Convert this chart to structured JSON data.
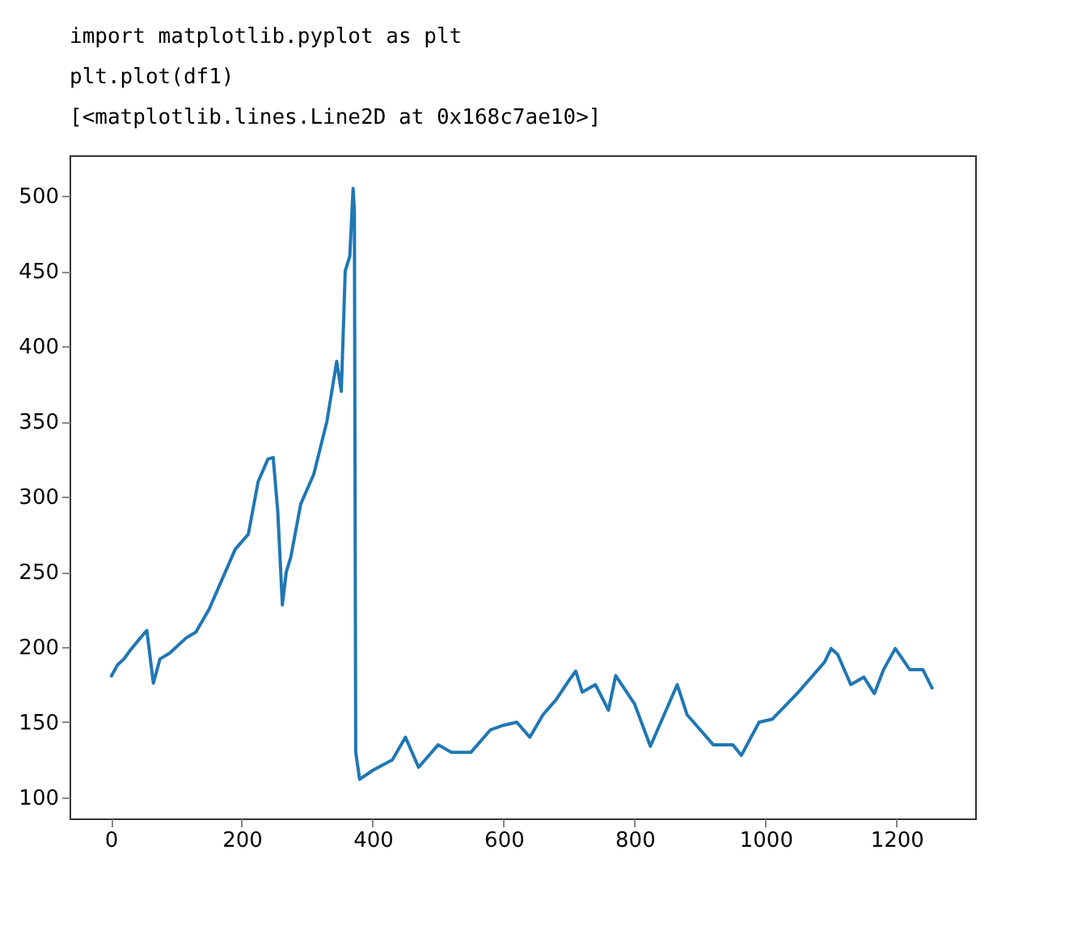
{
  "chart_data": {
    "type": "line",
    "annotations": [
      "import matplotlib.pyplot as plt",
      "plt.plot(df1)",
      "[<matplotlib.lines.Line2D at 0x168c7ae10>]"
    ],
    "x": [
      0,
      10,
      20,
      30,
      45,
      55,
      65,
      75,
      90,
      100,
      115,
      130,
      150,
      170,
      190,
      210,
      225,
      240,
      248,
      255,
      262,
      268,
      275,
      290,
      310,
      330,
      345,
      352,
      358,
      365,
      370,
      372,
      374,
      380,
      400,
      430,
      450,
      470,
      500,
      520,
      550,
      580,
      600,
      620,
      640,
      660,
      680,
      700,
      710,
      720,
      740,
      760,
      771,
      800,
      824,
      835,
      865,
      880,
      900,
      920,
      950,
      963,
      990,
      1010,
      1050,
      1090,
      1100,
      1110,
      1130,
      1150,
      1166,
      1180,
      1198,
      1220,
      1240,
      1255
    ],
    "series": [
      {
        "color": "#1f77b4",
        "values": [
          180,
          188,
          192,
          198,
          206,
          211,
          176,
          192,
          196,
          200,
          206,
          210,
          225,
          245,
          265,
          275,
          310,
          325,
          326,
          290,
          228,
          250,
          260,
          295,
          315,
          350,
          390,
          370,
          450,
          460,
          505,
          490,
          130,
          112,
          118,
          125,
          140,
          120,
          135,
          130,
          130,
          145,
          148,
          150,
          140,
          155,
          165,
          178,
          184,
          170,
          175,
          158,
          181,
          162,
          134,
          145,
          175,
          155,
          145,
          135,
          135,
          128,
          150,
          152,
          170,
          190,
          199,
          195,
          175,
          180,
          169,
          185,
          199,
          185,
          185,
          172
        ]
      }
    ],
    "xlim": [
      -63,
      1320
    ],
    "ylim": [
      86,
      527
    ],
    "xticks": [
      0,
      200,
      400,
      600,
      800,
      1000,
      1200
    ],
    "yticks": [
      100,
      150,
      200,
      250,
      300,
      350,
      400,
      450,
      500
    ],
    "grid": false,
    "marker": "none",
    "line_style": "solid"
  }
}
